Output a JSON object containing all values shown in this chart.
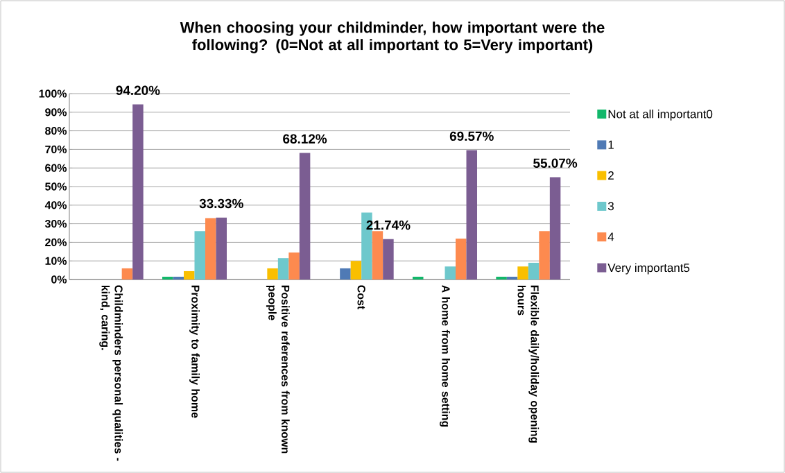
{
  "chart_data": {
    "type": "bar",
    "title": "When choosing your childminder, how important were the following? (0=Not at all important to 5=Very important)",
    "categories": [
      "Childminders personal qualities - kind, caring.",
      "Proximity to family home",
      "Positive references from known people",
      "Cost",
      "A home from home setting",
      "Flexible daily/holiday opening hours"
    ],
    "series": [
      {
        "name": "Not at all important0",
        "color": "#12b76a",
        "values": [
          0,
          1.5,
          0,
          0,
          1.5,
          1.5
        ]
      },
      {
        "name": "1",
        "color": "#4f7ab5",
        "values": [
          0,
          1.5,
          0,
          6,
          0,
          1.5
        ]
      },
      {
        "name": "2",
        "color": "#f9bf00",
        "values": [
          0,
          4.5,
          6,
          10,
          0,
          7
        ]
      },
      {
        "name": "3",
        "color": "#6ec8cc",
        "values": [
          0,
          26,
          11.5,
          36,
          7,
          9
        ]
      },
      {
        "name": "4",
        "color": "#fd8a4f",
        "values": [
          6,
          33,
          14.5,
          26,
          22,
          26
        ]
      },
      {
        "name": "Very important5",
        "color": "#7b5d92",
        "values": [
          94.2,
          33.33,
          68.12,
          21.74,
          69.57,
          55.07
        ],
        "value_labels": [
          "94.20%",
          "33.33%",
          "68.12%",
          "21.74%",
          "69.57%",
          "55.07%"
        ]
      }
    ],
    "ylim": [
      0,
      100
    ],
    "yticks": [
      {
        "value": 0,
        "label": "0%"
      },
      {
        "value": 10,
        "label": "10%"
      },
      {
        "value": 20,
        "label": "20%"
      },
      {
        "value": 30,
        "label": "30%"
      },
      {
        "value": 40,
        "label": "40%"
      },
      {
        "value": 50,
        "label": "50%"
      },
      {
        "value": 60,
        "label": "60%"
      },
      {
        "value": 70,
        "label": "70%"
      },
      {
        "value": 80,
        "label": "80%"
      },
      {
        "value": 90,
        "label": "90%"
      },
      {
        "value": 100,
        "label": "100%"
      }
    ],
    "grid": "y",
    "legend": "right"
  }
}
